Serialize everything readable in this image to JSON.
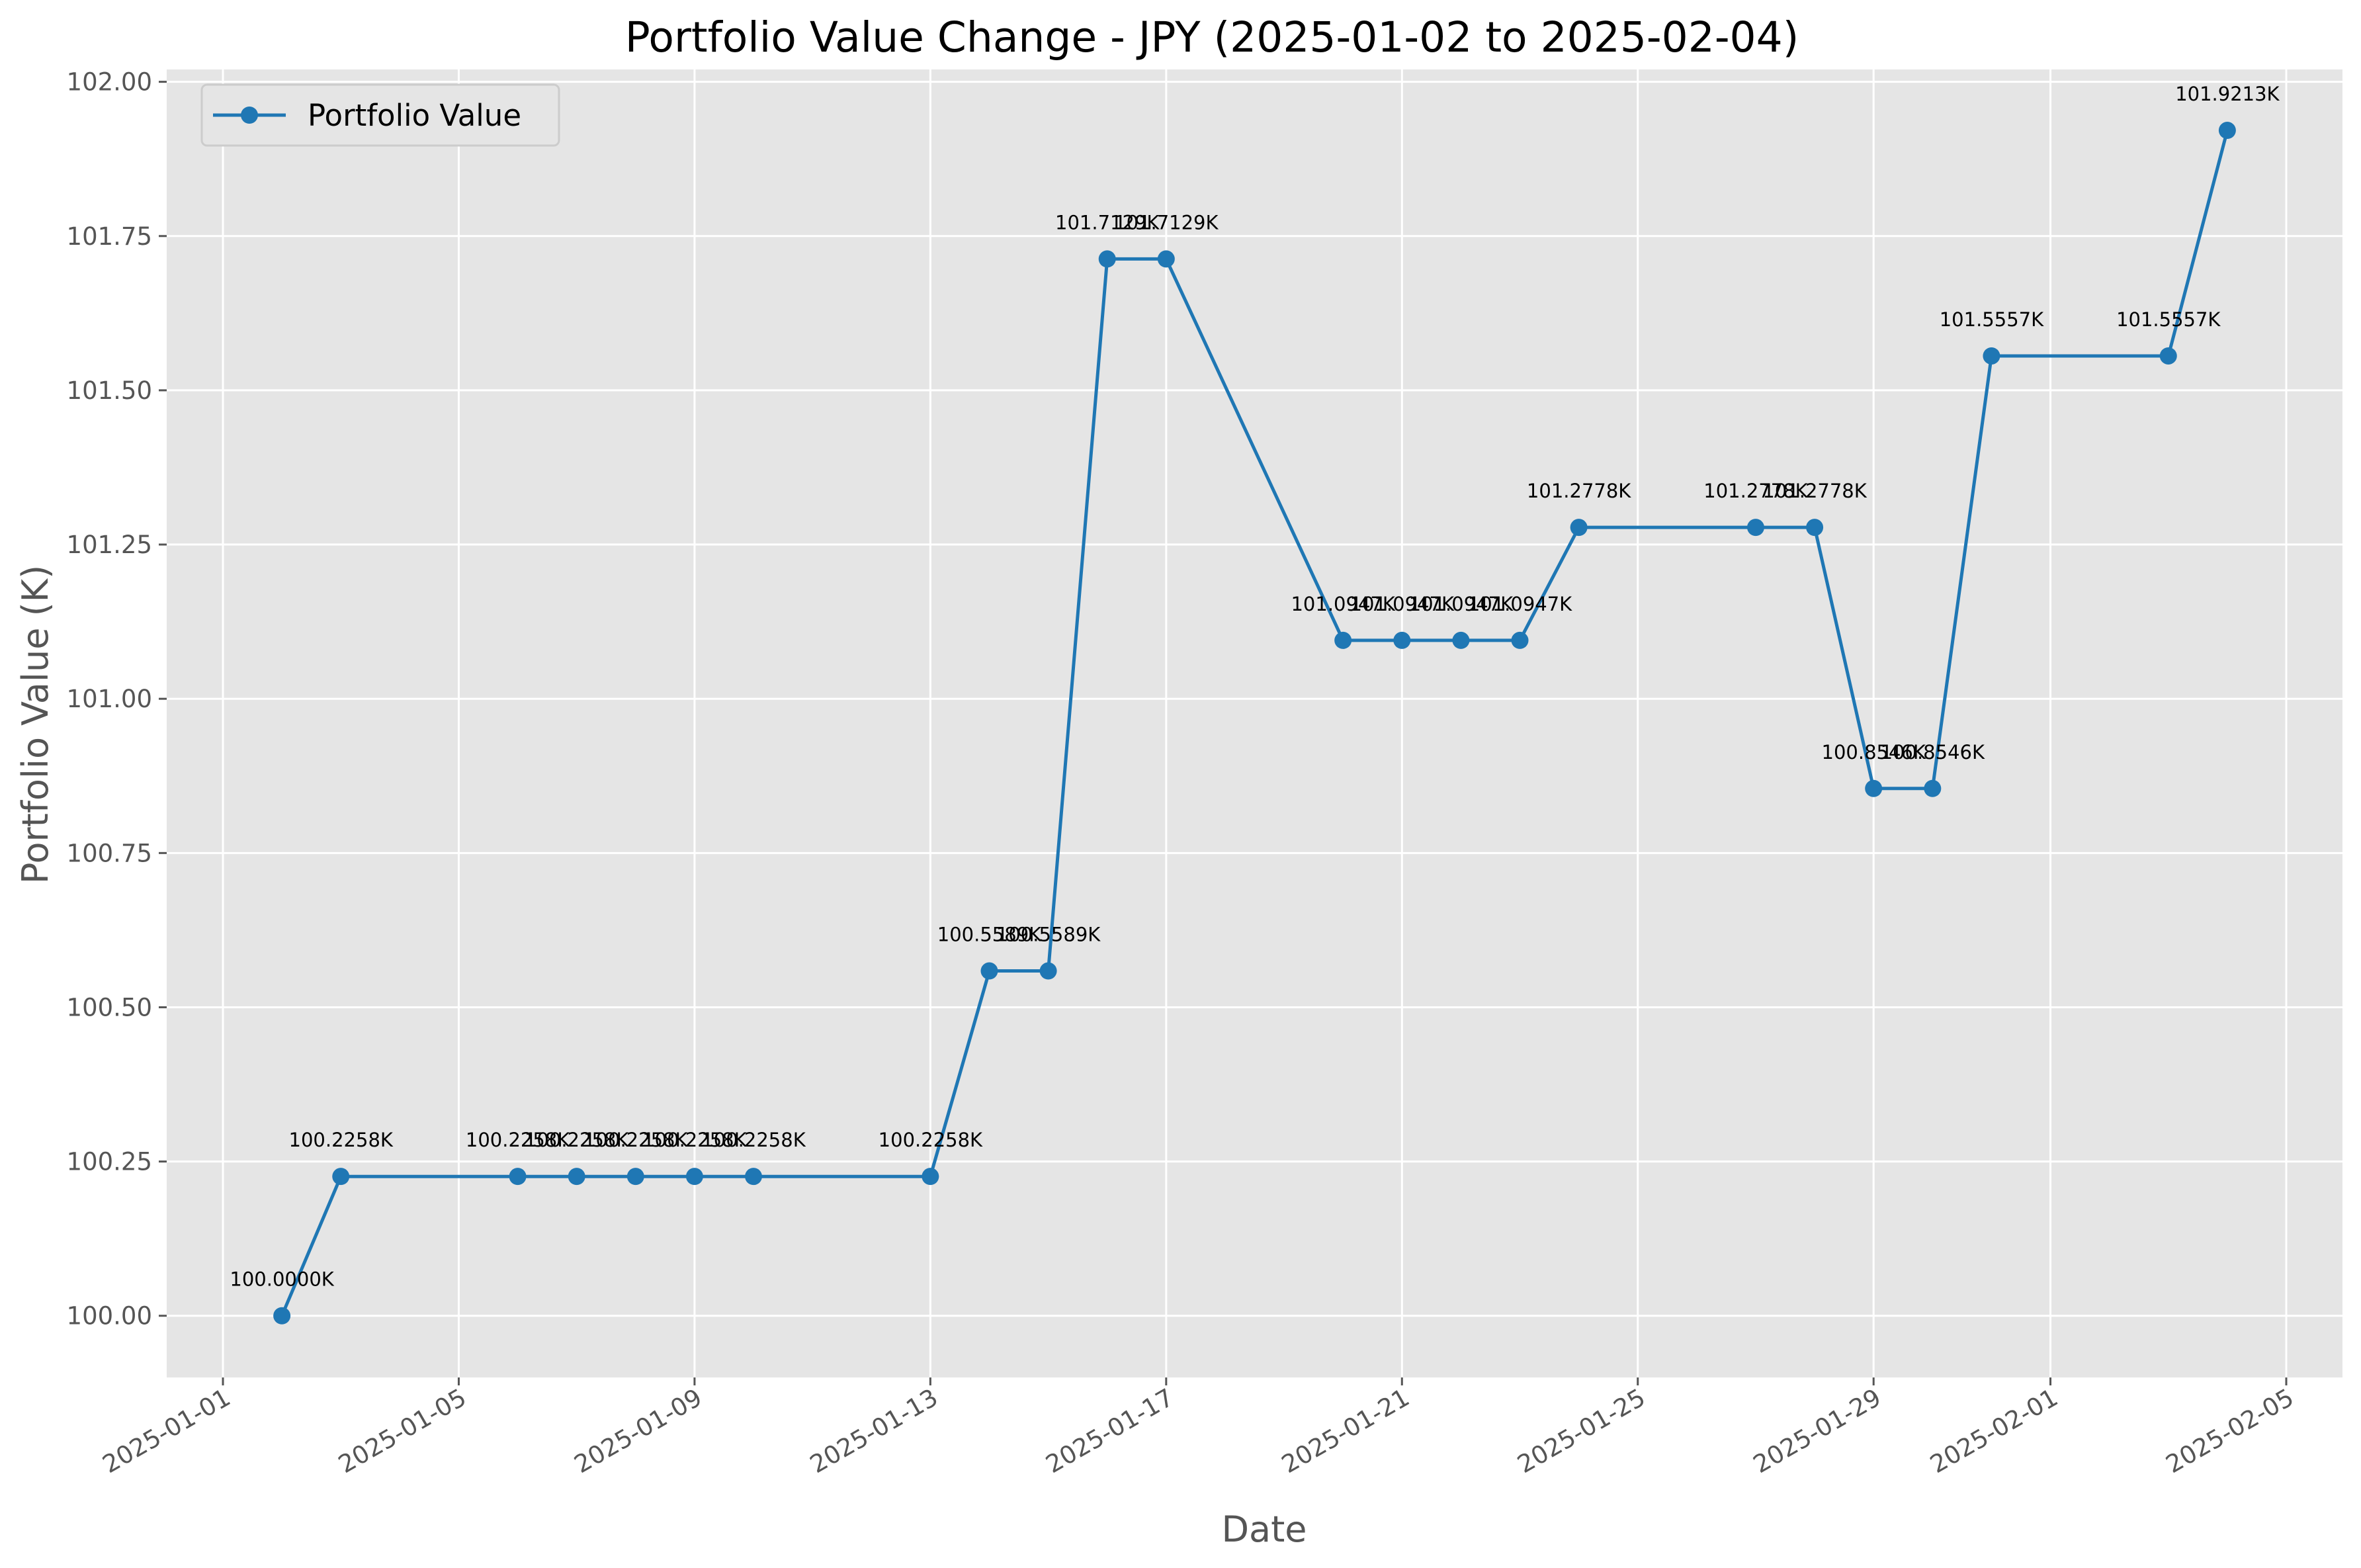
{
  "chart_data": {
    "type": "line",
    "title": "Portfolio Value Change - JPY (2025-01-02 to 2025-02-04)",
    "xlabel": "Date",
    "ylabel": "Portfolio Value (K)",
    "grid": true,
    "legend_position": "top-left",
    "xlim": [
      "2025-01-01",
      "2025-02-05"
    ],
    "ylim": [
      99.9,
      102.02
    ],
    "yticks": [
      "100.00",
      "100.25",
      "100.50",
      "100.75",
      "101.00",
      "101.25",
      "101.50",
      "101.75",
      "102.00"
    ],
    "xticks": [
      "2025-01-01",
      "2025-01-05",
      "2025-01-09",
      "2025-01-13",
      "2025-01-17",
      "2025-01-21",
      "2025-01-25",
      "2025-01-29",
      "2025-02-01",
      "2025-02-05"
    ],
    "colors": {
      "line": "#1f77b4",
      "plot_bg": "#e5e5e5",
      "grid": "#ffffff"
    },
    "series": [
      {
        "name": "Portfolio Value",
        "points": [
          {
            "date": "2025-01-02",
            "value": 100.0,
            "label": "100.0000K"
          },
          {
            "date": "2025-01-03",
            "value": 100.2258,
            "label": "100.2258K"
          },
          {
            "date": "2025-01-06",
            "value": 100.2258,
            "label": "100.2258K"
          },
          {
            "date": "2025-01-07",
            "value": 100.2258,
            "label": "100.2258K"
          },
          {
            "date": "2025-01-08",
            "value": 100.2258,
            "label": "100.2258K"
          },
          {
            "date": "2025-01-09",
            "value": 100.2258,
            "label": "100.2258K"
          },
          {
            "date": "2025-01-10",
            "value": 100.2258,
            "label": "100.2258K"
          },
          {
            "date": "2025-01-13",
            "value": 100.2258,
            "label": "100.2258K"
          },
          {
            "date": "2025-01-14",
            "value": 100.5589,
            "label": "100.5589K"
          },
          {
            "date": "2025-01-15",
            "value": 100.5589,
            "label": "100.5589K"
          },
          {
            "date": "2025-01-16",
            "value": 101.7129,
            "label": "101.7129K"
          },
          {
            "date": "2025-01-17",
            "value": 101.7129,
            "label": "101.7129K"
          },
          {
            "date": "2025-01-20",
            "value": 101.0947,
            "label": "101.0947K"
          },
          {
            "date": "2025-01-21",
            "value": 101.0947,
            "label": "101.0947K"
          },
          {
            "date": "2025-01-22",
            "value": 101.0947,
            "label": "101.0947K"
          },
          {
            "date": "2025-01-23",
            "value": 101.0947,
            "label": "101.0947K"
          },
          {
            "date": "2025-01-24",
            "value": 101.2778,
            "label": "101.2778K"
          },
          {
            "date": "2025-01-27",
            "value": 101.2778,
            "label": "101.2778K"
          },
          {
            "date": "2025-01-28",
            "value": 101.2778,
            "label": "101.2778K"
          },
          {
            "date": "2025-01-29",
            "value": 100.8546,
            "label": "100.8546K"
          },
          {
            "date": "2025-01-30",
            "value": 100.8546,
            "label": "100.8546K"
          },
          {
            "date": "2025-01-31",
            "value": 101.5557,
            "label": "101.5557K"
          },
          {
            "date": "2025-02-03",
            "value": 101.5557,
            "label": "101.5557K"
          },
          {
            "date": "2025-02-04",
            "value": 101.9213,
            "label": "101.9213K"
          }
        ]
      }
    ]
  }
}
